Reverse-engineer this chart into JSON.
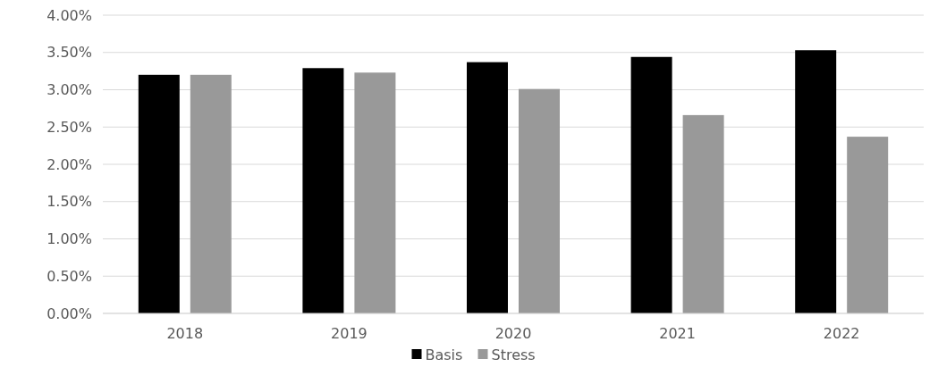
{
  "chart_data": {
    "type": "bar",
    "categories": [
      "2018",
      "2019",
      "2020",
      "2021",
      "2022"
    ],
    "series": [
      {
        "name": "Basis",
        "color": "#000000",
        "values": [
          3.2,
          3.29,
          3.37,
          3.44,
          3.53
        ]
      },
      {
        "name": "Stress",
        "color": "#999999",
        "values": [
          3.2,
          3.23,
          3.01,
          2.66,
          2.37
        ]
      }
    ],
    "ylim": [
      0,
      4
    ],
    "yticks": [
      {
        "value": 0,
        "label": "0.00%"
      },
      {
        "value": 0.5,
        "label": "0.50%"
      },
      {
        "value": 1,
        "label": "1.00%"
      },
      {
        "value": 1.5,
        "label": "1.50%"
      },
      {
        "value": 2,
        "label": "2.00%"
      },
      {
        "value": 2.5,
        "label": "2.50%"
      },
      {
        "value": 3,
        "label": "3.00%"
      },
      {
        "value": 3.5,
        "label": "3.50%"
      },
      {
        "value": 4,
        "label": "4.00%"
      }
    ],
    "grid": "y",
    "legend": "bottom"
  }
}
